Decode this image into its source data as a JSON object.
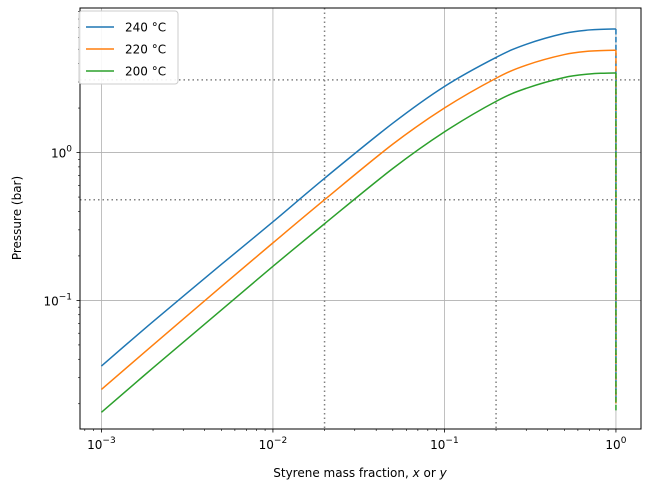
{
  "chart_data": {
    "type": "line",
    "x_scale": "log",
    "y_scale": "log",
    "xlabel_prefix": "Styrene mass fraction, ",
    "xlabel_x": "x",
    "xlabel_or": " or ",
    "xlabel_y": "y",
    "ylabel": "Pressure (bar)",
    "xlim": [
      0.00075,
      1.4
    ],
    "ylim": [
      0.0135,
      9.5
    ],
    "grid": true,
    "legend_position": "top-left",
    "x_ticks": [
      {
        "value": 0.001,
        "base": "10",
        "exp": "−3"
      },
      {
        "value": 0.01,
        "base": "10",
        "exp": "−2"
      },
      {
        "value": 0.1,
        "base": "10",
        "exp": "−1"
      },
      {
        "value": 1,
        "base": "10",
        "exp": "0"
      }
    ],
    "y_ticks": [
      {
        "value": 0.1,
        "base": "10",
        "exp": "−1"
      },
      {
        "value": 1,
        "base": "10",
        "exp": "0"
      }
    ],
    "vertical_reference_lines": [
      0.02,
      0.2
    ],
    "horizontal_reference_lines": [
      3.1,
      0.48
    ],
    "reference_line_color": "#808080",
    "series": [
      {
        "name": "240 °C",
        "color": "#1f77b4",
        "x": [
          0.001,
          0.002,
          0.005,
          0.01,
          0.02,
          0.05,
          0.1,
          0.2,
          0.3,
          0.5,
          0.7,
          0.85,
          1.0
        ],
        "y": [
          0.036,
          0.072,
          0.175,
          0.34,
          0.67,
          1.58,
          2.8,
          4.4,
          5.4,
          6.4,
          6.75,
          6.82,
          6.85
        ],
        "drop_y": 0.022
      },
      {
        "name": "220 °C",
        "color": "#ff7f0e",
        "x": [
          0.001,
          0.002,
          0.005,
          0.01,
          0.02,
          0.05,
          0.1,
          0.2,
          0.3,
          0.5,
          0.7,
          0.85,
          1.0
        ],
        "y": [
          0.025,
          0.05,
          0.124,
          0.245,
          0.48,
          1.14,
          2.0,
          3.18,
          3.9,
          4.6,
          4.85,
          4.9,
          4.92
        ],
        "drop_y": 0.02
      },
      {
        "name": "200 °C",
        "color": "#2ca02c",
        "x": [
          0.001,
          0.002,
          0.005,
          0.01,
          0.02,
          0.05,
          0.1,
          0.2,
          0.3,
          0.5,
          0.7,
          0.85,
          1.0
        ],
        "y": [
          0.0175,
          0.035,
          0.086,
          0.17,
          0.33,
          0.78,
          1.38,
          2.22,
          2.72,
          3.22,
          3.4,
          3.44,
          3.45
        ],
        "drop_y": 0.018
      }
    ]
  }
}
